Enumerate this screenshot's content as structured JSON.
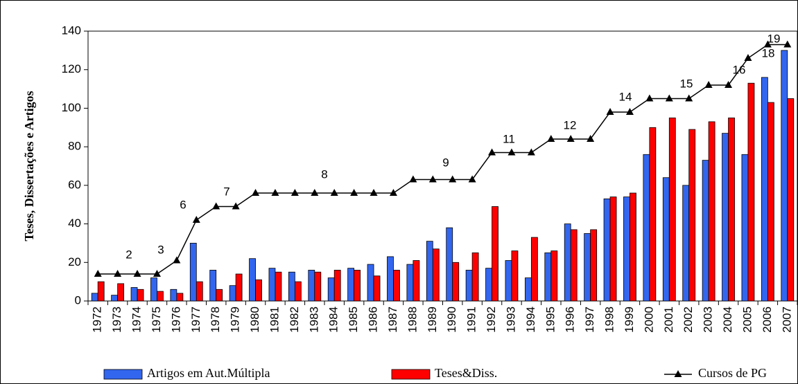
{
  "chart_data": {
    "type": "bar",
    "y_label": "Teses, Dissertações e Artigos",
    "categories": [
      "1972",
      "1973",
      "1974",
      "1975",
      "1976",
      "1977",
      "1978",
      "1979",
      "1980",
      "1981",
      "1982",
      "1983",
      "1984",
      "1985",
      "1986",
      "1987",
      "1988",
      "1989",
      "1990",
      "1991",
      "1992",
      "1993",
      "1994",
      "1995",
      "1996",
      "1997",
      "1998",
      "1999",
      "2000",
      "2001",
      "2002",
      "2003",
      "2004",
      "2005",
      "2006",
      "2007"
    ],
    "series": [
      {
        "name": "Artigos em Aut.Múltipla",
        "type": "bar",
        "color": "#3366ee",
        "values": [
          4,
          3,
          7,
          12,
          6,
          30,
          16,
          8,
          22,
          17,
          15,
          16,
          12,
          17,
          19,
          23,
          19,
          31,
          38,
          16,
          17,
          21,
          12,
          25,
          40,
          35,
          53,
          54,
          76,
          64,
          60,
          73,
          87,
          76,
          116,
          130
        ]
      },
      {
        "name": "Teses&Diss.",
        "type": "bar",
        "color": "#ff0000",
        "values": [
          10,
          9,
          6,
          5,
          4,
          10,
          6,
          14,
          11,
          15,
          10,
          15,
          16,
          16,
          13,
          16,
          21,
          27,
          20,
          25,
          49,
          26,
          33,
          26,
          37,
          37,
          54,
          56,
          90,
          95,
          89,
          93,
          95,
          113,
          103,
          105
        ]
      },
      {
        "name": "Cursos de PG",
        "type": "line",
        "color": "#000000",
        "values": [
          14,
          14,
          14,
          14,
          21,
          42,
          49,
          49,
          56,
          56,
          56,
          56,
          56,
          56,
          56,
          56,
          63,
          63,
          63,
          63,
          77,
          77,
          77,
          84,
          84,
          84,
          98,
          98,
          105,
          105,
          105,
          112,
          112,
          126,
          133,
          133
        ]
      }
    ],
    "annotations": [
      "2",
      "3",
      "6",
      "7",
      "8",
      "9",
      "11",
      "12",
      "14",
      "15",
      "16",
      "18",
      "19"
    ],
    "ylim": [
      0,
      140
    ],
    "yticks": [
      0,
      20,
      40,
      60,
      80,
      100,
      120,
      140
    ],
    "grid": false,
    "legend": "bottom"
  }
}
